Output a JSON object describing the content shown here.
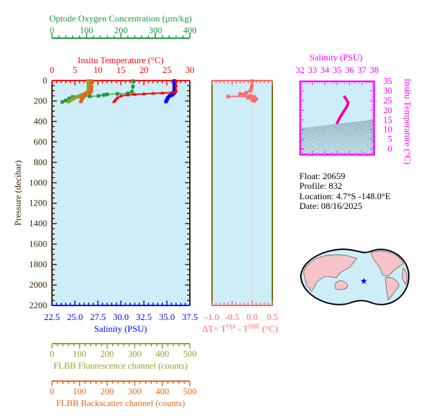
{
  "colors": {
    "temperature": "#ff0000",
    "salinity": "#0000ff",
    "oxygen": "#1a9a3a",
    "fluorescence": "#9d9b2f",
    "backscatter": "#e0681a",
    "delta_t": "#ff6666",
    "ts": "#ff00ff",
    "pressure_axis": "#3b2406",
    "plot_background": "#cdeef8"
  },
  "info": {
    "float": "Float:  20659",
    "profile": "Profile:  832",
    "location": "Location:  4.7°S  -148.0°E",
    "date": "Date:  08/16/2025"
  },
  "chart_data": [
    {
      "type": "line",
      "panel": "profiles",
      "ylabel": "Pressure (decibar)",
      "ylim": [
        2200,
        0
      ],
      "yticks": [
        "0",
        "200",
        "400",
        "600",
        "800",
        "1000",
        "1200",
        "1400",
        "1600",
        "1800",
        "2000",
        "2200"
      ],
      "axes": {
        "temperature": {
          "label": "Insitu Temperature (°C)",
          "lim": [
            0,
            30
          ],
          "ticks": [
            "0",
            "5",
            "10",
            "15",
            "20",
            "25",
            "30"
          ],
          "position": "top"
        },
        "oxygen": {
          "label": "Optode Oxygen Concentration (µm/kg)",
          "lim": [
            0,
            400
          ],
          "ticks": [
            "0",
            "100",
            "200",
            "300",
            "400"
          ],
          "position": "top"
        },
        "salinity": {
          "label": "Salinity (PSU)",
          "lim": [
            22.5,
            37.5
          ],
          "ticks": [
            "22.5",
            "25.0",
            "27.5",
            "30.0",
            "32.5",
            "35.0",
            "37.5"
          ],
          "position": "bottom"
        },
        "fluorescence": {
          "label": "FLBB Fluorescence channel (counts)",
          "lim": [
            0,
            500
          ],
          "ticks": [
            "0",
            "100",
            "200",
            "300",
            "400",
            "500"
          ],
          "position": "bottom"
        },
        "backscatter": {
          "label": "FLBB Backscatter channel (counts)",
          "lim": [
            0,
            500
          ],
          "ticks": [
            "0",
            "100",
            "200",
            "300",
            "400",
            "500"
          ],
          "position": "bottom"
        }
      },
      "series": [
        {
          "axis": "temperature",
          "pressure": [
            5,
            50,
            100,
            110,
            118,
            122,
            126,
            130,
            135,
            140,
            150,
            170,
            190,
            205
          ],
          "values": [
            27,
            27,
            27,
            26.8,
            26,
            24,
            22,
            20,
            18,
            16.5,
            15,
            14.2,
            13.8,
            13.5
          ]
        },
        {
          "axis": "salinity",
          "pressure": [
            5,
            50,
            100,
            120,
            140,
            150,
            170,
            190,
            205
          ],
          "values": [
            35.8,
            35.8,
            35.8,
            35.8,
            35.6,
            35.3,
            35.1,
            35.0,
            34.9
          ]
        },
        {
          "axis": "oxygen",
          "pressure": [
            5,
            60,
            110,
            125,
            130,
            135,
            142,
            150,
            155,
            157,
            160,
            175,
            195,
            210
          ],
          "values": [
            235,
            235,
            232,
            220,
            190,
            160,
            150,
            135,
            110,
            80,
            60,
            50,
            40,
            30
          ]
        },
        {
          "axis": "fluorescence",
          "pressure": [
            5,
            60,
            100,
            120,
            140,
            160,
            180,
            205
          ],
          "values": [
            132,
            132,
            132,
            125,
            110,
            90,
            75,
            60
          ]
        },
        {
          "axis": "backscatter",
          "pressure": [
            5,
            60,
            100,
            120,
            140,
            155,
            175,
            205
          ],
          "values": [
            143,
            143,
            143,
            138,
            120,
            115,
            110,
            105
          ]
        }
      ]
    },
    {
      "type": "line",
      "panel": "delta-t",
      "xlabel": "ΔT= T",
      "xlabel_sup1": "Opt",
      "xlabel_mid": " - T",
      "xlabel_sup2": "SBE",
      "xlabel_end": " (°C)",
      "xlim": [
        -1.0,
        0.5
      ],
      "ylim": [
        2200,
        0
      ],
      "xticks": [
        "-1.0",
        "-0.5",
        "0.0",
        "0.5"
      ],
      "pressure": [
        5,
        50,
        80,
        100,
        120,
        130,
        140,
        150,
        156,
        160,
        170,
        180,
        190,
        200
      ],
      "values": [
        0,
        -0.01,
        -0.02,
        -0.05,
        -0.15,
        -0.3,
        -0.2,
        -0.05,
        -0.6,
        0.05,
        -0.1,
        0.1,
        0.0,
        0.05
      ]
    },
    {
      "type": "line",
      "panel": "t-s",
      "xlabel": "Salinity (PSU)",
      "ylabel": "Insitu Temperature (°C)",
      "xlim": [
        32,
        38
      ],
      "ylim": [
        -3,
        35
      ],
      "xticks": [
        "32",
        "33",
        "34",
        "35",
        "36",
        "37",
        "38"
      ],
      "yticks": [
        "0",
        "5",
        "10",
        "15",
        "20",
        "25",
        "30",
        "35"
      ],
      "salinity": [
        35.6,
        35.7,
        35.8,
        35.9,
        35.8,
        35.6,
        35.4,
        35.2,
        35.0
      ],
      "temperature": [
        27,
        26,
        25,
        24,
        22,
        20,
        18,
        16,
        13.4
      ]
    }
  ],
  "map": {
    "marker": "star-icon"
  }
}
